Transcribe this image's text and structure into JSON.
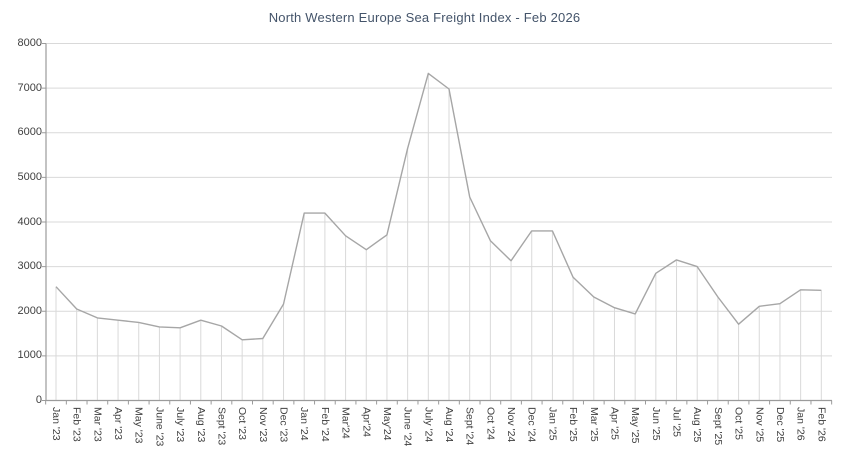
{
  "chart": {
    "title": "North Western Europe Sea Freight Index - Feb 2026"
  },
  "chart_data": {
    "type": "line",
    "title": "North Western Europe Sea Freight Index - Feb 2026",
    "xlabel": "",
    "ylabel": "",
    "ylim": [
      0,
      8000
    ],
    "ytick_step": 1000,
    "ytick_labels": [
      "0",
      "1000",
      "2000",
      "3000",
      "4000",
      "5000",
      "6000",
      "7000",
      "8000"
    ],
    "grid": "horizontal",
    "drop_lines": true,
    "legend": "none",
    "categories": [
      "Jan '23",
      "Feb '23",
      "Mar '23",
      "Apr '23",
      "May '23",
      "June '23",
      "July '23",
      "Aug '23",
      "Sept '23",
      "Oct '23",
      "Nov '23",
      "Dec '23",
      "Jan '24",
      "Feb '24",
      "Mar'24",
      "Apr'24",
      "May'24",
      "June '24",
      "July '24",
      "Aug '24",
      "Sept '24",
      "Oct '24",
      "Nov '24",
      "Dec '24",
      "Jan '25",
      "Feb '25",
      "Mar '25",
      "Apr '25",
      "May '25",
      "Jun '25",
      "Jul '25",
      "Aug '25",
      "Sept '25",
      "Oct '25",
      "Nov '25",
      "Dec '25",
      "Jan '26",
      "Feb '26"
    ],
    "series": [
      {
        "name": "Sea Freight Index",
        "values": [
          2550,
          2050,
          1850,
          1800,
          1750,
          1650,
          1630,
          1800,
          1670,
          1360,
          1390,
          2160,
          4200,
          4200,
          3690,
          3380,
          3710,
          5650,
          7330,
          6980,
          4560,
          3580,
          3130,
          3800,
          3800,
          2760,
          2320,
          2080,
          1940,
          2850,
          3150,
          3000,
          2320,
          1710,
          2110,
          2170,
          2480,
          2470
        ]
      }
    ],
    "colors": {
      "line": "#a6a6a6",
      "title_text": "#44546a",
      "axis_text": "#404040",
      "gridline": "#d9d9d9",
      "drop_line": "#d9d9d9",
      "axis_line": "#9b9b9b",
      "background": "#ffffff"
    }
  }
}
